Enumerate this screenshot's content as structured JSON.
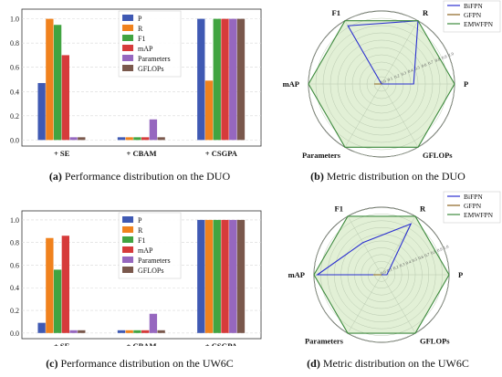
{
  "colors": {
    "P": "#3f59b3",
    "R": "#f0821e",
    "F1": "#41a441",
    "mAP": "#d63b3b",
    "Parameters": "#9667bf",
    "GFLOPs": "#7a584c",
    "radar_bifpn": "#2a2fd0",
    "radar_gfpn": "#8c6420",
    "radar_emwfpn": "#3d8a3d",
    "radar_fill": "#e2f0d6"
  },
  "captions": [
    {
      "label": "(a)",
      "text": " Performance distribution on the DUO"
    },
    {
      "label": "(b)",
      "text": " Metric distribution on the DUO"
    },
    {
      "label": "(c)",
      "text": " Performance distribution on the UW6C"
    },
    {
      "label": "(d)",
      "text": " Metric distribution on the UW6C"
    }
  ],
  "chart_data": [
    {
      "type": "bar",
      "categories": [
        "+ SE",
        "+ CBAM",
        "+ CSGPA"
      ],
      "yticks": [
        "0.0",
        "0.2",
        "0.4",
        "0.6",
        "0.8",
        "1.0"
      ],
      "ylim": [
        -0.05,
        1.08
      ],
      "grid": true,
      "legend_position": "top-center",
      "series": [
        {
          "name": "P",
          "values": [
            0.47,
            0.0,
            1.0
          ]
        },
        {
          "name": "R",
          "values": [
            1.0,
            0.0,
            0.49
          ]
        },
        {
          "name": "F1",
          "values": [
            0.95,
            0.0,
            1.0
          ]
        },
        {
          "name": "mAP",
          "values": [
            0.7,
            0.0,
            1.0
          ]
        },
        {
          "name": "Parameters",
          "values": [
            0.0,
            0.17,
            1.0
          ]
        },
        {
          "name": "GFLOPs",
          "values": [
            0.0,
            0.0,
            1.0
          ]
        }
      ]
    },
    {
      "type": "radar",
      "axes": [
        "R",
        "P",
        "GFLOPs",
        "Parameters",
        "mAP",
        "F1"
      ],
      "rticks": [
        "0.0",
        "0.1",
        "0.2",
        "0.3",
        "0.4",
        "0.5",
        "0.6",
        "0.7",
        "0.8",
        "0.9",
        "1.0"
      ],
      "legend_position": "top-right",
      "series": [
        {
          "name": "BiFPN",
          "values": [
            1.0,
            0.44,
            0.0,
            0.0,
            0.0,
            0.92
          ]
        },
        {
          "name": "GFPN",
          "values": [
            0.0,
            0.0,
            0.0,
            0.0,
            0.1,
            0.0
          ]
        },
        {
          "name": "EMWFPN",
          "values": [
            1.0,
            1.0,
            1.0,
            1.0,
            1.0,
            1.0
          ]
        }
      ]
    },
    {
      "type": "bar",
      "categories": [
        "+ SE",
        "+ CBAM",
        "+ CSGPA"
      ],
      "yticks": [
        "0.0",
        "0.2",
        "0.4",
        "0.6",
        "0.8",
        "1.0"
      ],
      "ylim": [
        -0.05,
        1.08
      ],
      "grid": true,
      "legend_position": "top-center",
      "series": [
        {
          "name": "P",
          "values": [
            0.09,
            0.0,
            1.0
          ]
        },
        {
          "name": "R",
          "values": [
            0.84,
            0.0,
            1.0
          ]
        },
        {
          "name": "F1",
          "values": [
            0.56,
            0.0,
            1.0
          ]
        },
        {
          "name": "mAP",
          "values": [
            0.86,
            0.0,
            1.0
          ]
        },
        {
          "name": "Parameters",
          "values": [
            0.0,
            0.17,
            1.0
          ]
        },
        {
          "name": "GFLOPs",
          "values": [
            0.0,
            0.0,
            1.0
          ]
        }
      ]
    },
    {
      "type": "radar",
      "axes": [
        "R",
        "P",
        "GFLOPs",
        "Parameters",
        "mAP",
        "F1"
      ],
      "rticks": [
        "0.0",
        "0.1",
        "0.2",
        "0.3",
        "0.4",
        "0.5",
        "0.6",
        "0.7",
        "0.8",
        "0.9",
        "1.0"
      ],
      "legend_position": "top-right",
      "series": [
        {
          "name": "BiFPN",
          "values": [
            0.87,
            0.08,
            0.0,
            0.0,
            0.95,
            0.55
          ]
        },
        {
          "name": "GFPN",
          "values": [
            0.0,
            0.0,
            0.0,
            0.0,
            0.12,
            0.0
          ]
        },
        {
          "name": "EMWFPN",
          "values": [
            1.0,
            1.0,
            1.0,
            1.0,
            1.0,
            1.0
          ]
        }
      ]
    }
  ]
}
